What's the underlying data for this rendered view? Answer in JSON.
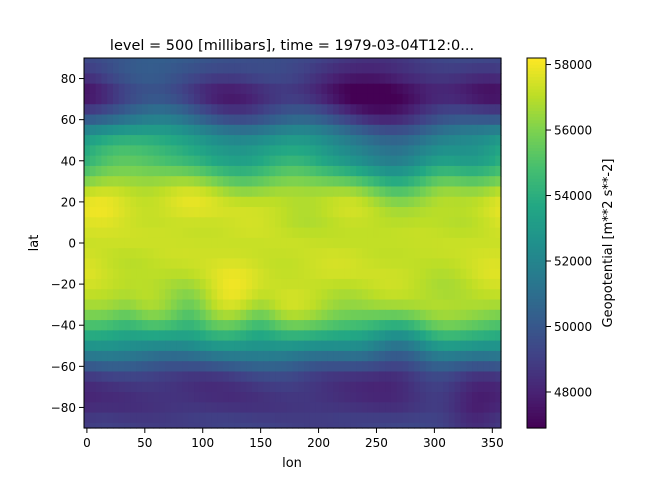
{
  "chart_data": {
    "type": "heatmap",
    "title": "level = 500 [millibars], time = 1979-03-04T12:0...",
    "xlabel": "lon",
    "ylabel": "lat",
    "colorbar_label": "Geopotential [m**2 s**-2]",
    "colormap": "viridis",
    "xlim": [
      -2.5,
      357.5
    ],
    "ylim": [
      -90,
      90
    ],
    "x_ticks": [
      0,
      50,
      100,
      150,
      200,
      250,
      300,
      350
    ],
    "x_tick_labels": [
      "0",
      "50",
      "100",
      "150",
      "200",
      "250",
      "300",
      "350"
    ],
    "y_ticks": [
      -80,
      -60,
      -40,
      -20,
      0,
      20,
      40,
      60,
      80
    ],
    "y_tick_labels": [
      "−80",
      "−60",
      "−40",
      "−20",
      "0",
      "20",
      "40",
      "60",
      "80"
    ],
    "colorbar_range": [
      46900,
      58200
    ],
    "colorbar_ticks": [
      48000,
      50000,
      52000,
      54000,
      56000,
      58000
    ],
    "colorbar_tick_labels": [
      "48000",
      "50000",
      "52000",
      "54000",
      "56000",
      "58000"
    ],
    "grid_resolution_deg": 5,
    "zonal_profile": {
      "lat": [
        -90,
        -85,
        -80,
        -75,
        -70,
        -65,
        -60,
        -55,
        -50,
        -45,
        -40,
        -35,
        -30,
        -25,
        -20,
        -15,
        -10,
        -5,
        0,
        5,
        10,
        15,
        20,
        25,
        30,
        35,
        40,
        45,
        50,
        55,
        60,
        65,
        70,
        75,
        80,
        85,
        90
      ],
      "value": [
        49400,
        49300,
        49000,
        48900,
        49000,
        49400,
        50400,
        51600,
        52900,
        54100,
        55300,
        56300,
        56900,
        57100,
        57200,
        57300,
        57300,
        57300,
        57300,
        57300,
        57300,
        57400,
        57300,
        56800,
        55900,
        54900,
        54000,
        53500,
        52900,
        51900,
        50600,
        49600,
        48800,
        48800,
        49400,
        49800,
        50000
      ]
    },
    "anomalies": [
      {
        "lon": 255,
        "lat": 72.5,
        "delta": -1500,
        "r": 28
      },
      {
        "lon": 355,
        "lat": 72.5,
        "delta": -1100,
        "r": 18
      },
      {
        "lon": 195,
        "lat": 67.5,
        "delta": -700,
        "r": 35
      },
      {
        "lon": 60,
        "lat": 55,
        "delta": 1200,
        "r": 22
      },
      {
        "lon": 120,
        "lat": 57.5,
        "delta": -900,
        "r": 18
      },
      {
        "lon": 180,
        "lat": 55,
        "delta": 1000,
        "r": 20
      },
      {
        "lon": 265,
        "lat": 40,
        "delta": -1300,
        "r": 15
      },
      {
        "lon": 15,
        "lat": 45,
        "delta": 1000,
        "r": 15
      },
      {
        "lon": 330,
        "lat": 35,
        "delta": -900,
        "r": 12
      },
      {
        "lon": 120,
        "lat": -32.5,
        "delta": 600,
        "r": 12
      },
      {
        "lon": 175,
        "lat": -27.5,
        "delta": 500,
        "r": 14
      },
      {
        "lon": 35,
        "lat": -35,
        "delta": -900,
        "r": 8
      },
      {
        "lon": 90,
        "lat": -35,
        "delta": -800,
        "r": 8
      },
      {
        "lon": 150,
        "lat": -35,
        "delta": -800,
        "r": 8
      },
      {
        "lon": 270,
        "lat": -50,
        "delta": -1800,
        "r": 15
      },
      {
        "lon": 300,
        "lat": -45,
        "delta": 800,
        "r": 12
      },
      {
        "lon": 335,
        "lat": -82.5,
        "delta": -1200,
        "r": 12
      },
      {
        "lon": 65,
        "lat": -72.5,
        "delta": -600,
        "r": 30
      },
      {
        "lon": 200,
        "lat": -80,
        "delta": -500,
        "r": 25
      }
    ]
  }
}
